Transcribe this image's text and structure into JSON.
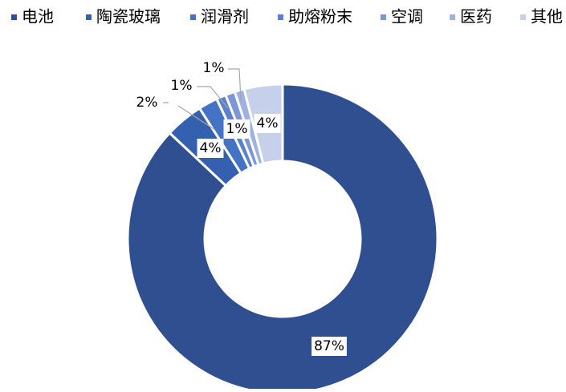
{
  "chart_data": {
    "type": "pie",
    "categories": [
      "电池",
      "陶瓷玻璃",
      "润滑剂",
      "助熔粉末",
      "空调",
      "医药",
      "其他"
    ],
    "values": [
      87,
      4,
      2,
      1,
      1,
      1,
      4
    ],
    "value_labels": [
      "87%",
      "4%",
      "2%",
      "1%",
      "1%",
      "1%",
      "4%"
    ],
    "colors": [
      "#2f4f91",
      "#3560b0",
      "#4472c4",
      "#5b80cc",
      "#7c97d6",
      "#9fb2df",
      "#c6d0ea"
    ],
    "legend": "top"
  }
}
